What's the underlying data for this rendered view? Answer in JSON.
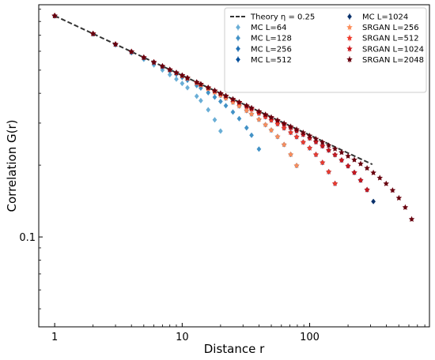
{
  "chart_data": {
    "type": "scatter",
    "xlabel": "Distance r",
    "ylabel": "Correlation G(r)",
    "xscale": "log",
    "yscale": "log",
    "xlim": [
      0.75,
      870
    ],
    "ylim": [
      0.042,
      0.94
    ],
    "grid": false,
    "legend_position": "top-right",
    "legend_columns": 2,
    "x_ticks": [
      {
        "value": 1,
        "label": "1"
      },
      {
        "value": 10,
        "label": "10"
      },
      {
        "value": 100,
        "label": "100"
      }
    ],
    "y_ticks": [
      {
        "value": 0.1,
        "label": "0.1"
      }
    ],
    "theory": {
      "name": "Theory η = 0.25",
      "color": "#333333",
      "style": "dashed",
      "eta": 0.25,
      "x_range": [
        1,
        310
      ],
      "g_at_r1": 0.845
    },
    "series": [
      {
        "name": "MC L=64",
        "color": "#6aaed6",
        "marker": "diamond",
        "L": 64,
        "r_max": 20,
        "g_at_r1": 0.845
      },
      {
        "name": "MC L=128",
        "color": "#4292c6",
        "marker": "diamond",
        "L": 128,
        "r_max": 42,
        "g_at_r1": 0.845
      },
      {
        "name": "MC L=256",
        "color": "#2171b5",
        "marker": "diamond",
        "L": 256,
        "r_max": 80,
        "g_at_r1": 0.845
      },
      {
        "name": "MC L=512",
        "color": "#08519c",
        "marker": "diamond",
        "L": 512,
        "r_max": 165,
        "g_at_r1": 0.845
      },
      {
        "name": "MC L=1024",
        "color": "#08306b",
        "marker": "diamond",
        "L": 1024,
        "r_max": 320,
        "g_at_r1": 0.845
      },
      {
        "name": "SRGAN L=256",
        "color": "#fc8d59",
        "marker": "star",
        "L": 256,
        "r_max": 80,
        "g_at_r1": 0.845
      },
      {
        "name": "SRGAN L=512",
        "color": "#ef3b2c",
        "marker": "star",
        "L": 512,
        "r_max": 160,
        "g_at_r1": 0.845
      },
      {
        "name": "SRGAN L=1024",
        "color": "#cb181d",
        "marker": "star",
        "L": 1024,
        "r_max": 310,
        "g_at_r1": 0.845
      },
      {
        "name": "SRGAN L=2048",
        "color": "#67000d",
        "marker": "star",
        "L": 2048,
        "r_max": 640,
        "g_at_r1": 0.845
      }
    ]
  }
}
